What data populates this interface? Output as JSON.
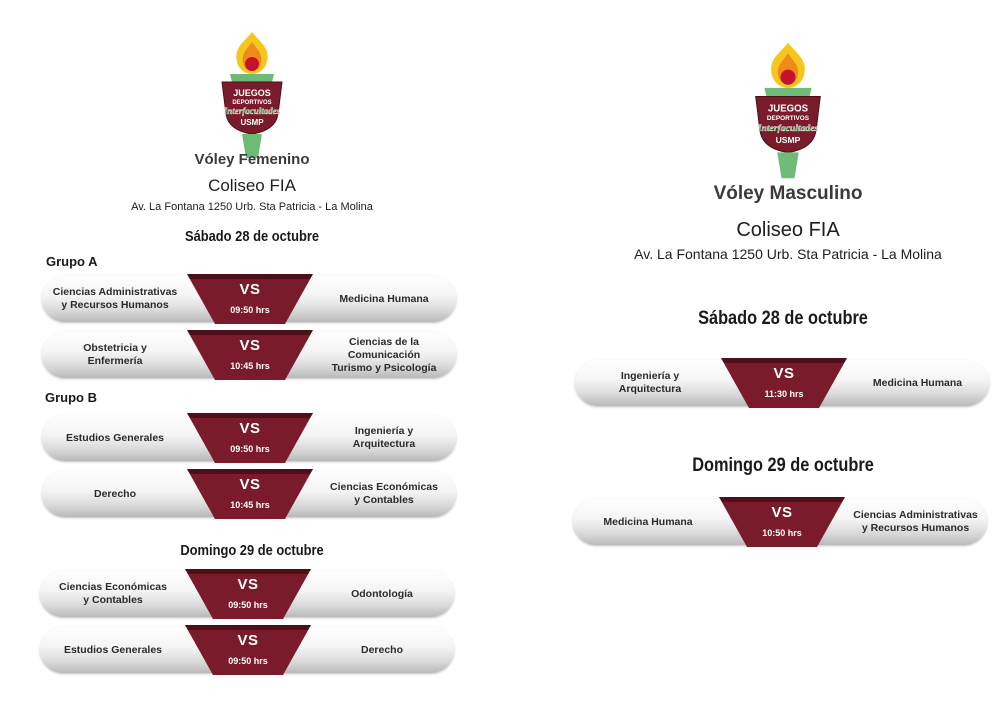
{
  "logo": {
    "line1": "JUEGOS",
    "line2": "DEPORTIVOS",
    "line3": "Interfacultades",
    "line4": "USMP"
  },
  "left": {
    "sport": "Vóley Femenino",
    "venue": "Coliseo FIA",
    "address": "Av. La Fontana 1250 Urb. Sta Patricia - La Molina",
    "day1": "Sábado 28 de octubre",
    "groupA": "Grupo A",
    "groupB": "Grupo B",
    "day2": "Domingo 29 de octubre",
    "matches": [
      {
        "left": "Ciencias Administrativas\ny Recursos Humanos",
        "vs": "VS",
        "time": "09:50 hrs",
        "right": "Medicina Humana"
      },
      {
        "left": "Obstetricia y\nEnfermería",
        "vs": "VS",
        "time": "10:45 hrs",
        "right": "Ciencias de la Comunicación\nTurismo y Psicología"
      },
      {
        "left": "Estudios Generales",
        "vs": "VS",
        "time": "09:50 hrs",
        "right": "Ingeniería y\nArquitectura"
      },
      {
        "left": "Derecho",
        "vs": "VS",
        "time": "10:45 hrs",
        "right": "Ciencias Económicas\ny Contables"
      },
      {
        "left": "Ciencias Económicas\ny Contables",
        "vs": "VS",
        "time": "09:50 hrs",
        "right": "Odontología"
      },
      {
        "left": "Estudios Generales",
        "vs": "VS",
        "time": "09:50 hrs",
        "right": "Derecho"
      }
    ]
  },
  "right": {
    "sport": "Vóley Masculino",
    "venue": "Coliseo FIA",
    "address": "Av. La Fontana 1250 Urb. Sta Patricia - La Molina",
    "day1": "Sábado 28 de octubre",
    "day2": "Domingo 29 de octubre",
    "matches": [
      {
        "left": "Ingeniería y\nArquitectura",
        "vs": "VS",
        "time": "11:30 hrs",
        "right": "Medicina Humana"
      },
      {
        "left": "Medicina Humana",
        "vs": "VS",
        "time": "10:50 hrs",
        "right": "Ciencias Administrativas\ny Recursos Humanos"
      }
    ]
  },
  "colors": {
    "maroon": "#7a1b2b",
    "maroon_dark": "#4e0f1a",
    "torch_green": "#6dbb76",
    "flame_orange": "#f08a1c",
    "flame_yellow": "#f7c61e"
  }
}
